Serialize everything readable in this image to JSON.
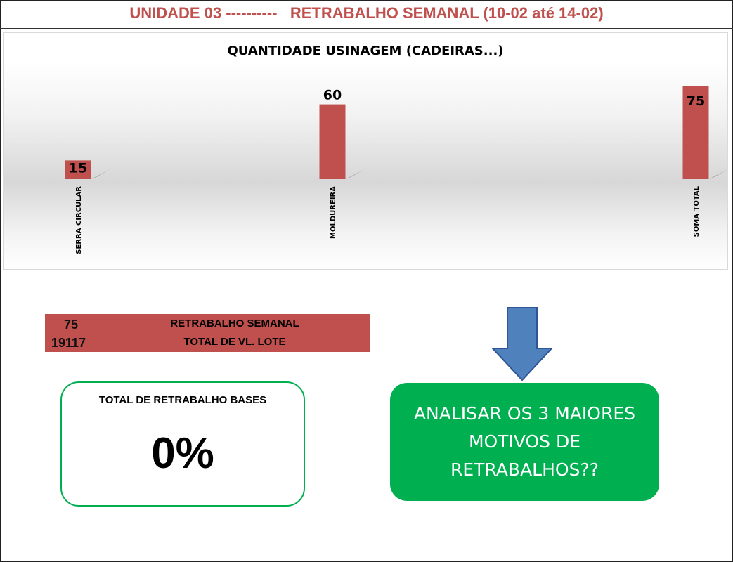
{
  "header": {
    "title": "UNIDADE 03 ----------   RETRABALHO SEMANAL (10-02 até 14-02)"
  },
  "chart_data": {
    "type": "bar",
    "title": "QUANTIDADE USINAGEM (CADEIRAS...)",
    "categories": [
      "SERRA CIRCULAR",
      "MOLDUREIRA",
      "SOMA TOTAL"
    ],
    "values": [
      15,
      60,
      75
    ],
    "xlabel": "",
    "ylabel": "",
    "ylim": [
      0,
      75
    ],
    "grid": false,
    "legend": "none",
    "bar_color": "#c0504d"
  },
  "summary": {
    "rows": [
      {
        "value": "75",
        "label": "RETRABALHO SEMANAL"
      },
      {
        "value": "19117",
        "label": "TOTAL DE VL. LOTE"
      }
    ]
  },
  "total_box": {
    "label": "TOTAL DE RETRABALHO BASES",
    "value": "0%"
  },
  "action": {
    "text": "ANALISAR OS 3 MAIORES MOTIVOS DE RETRABALHOS??",
    "icon": "arrow-down-icon",
    "arrow_color": "#4f81bd"
  },
  "colors": {
    "accent": "#c0504d",
    "green": "#00b050"
  }
}
